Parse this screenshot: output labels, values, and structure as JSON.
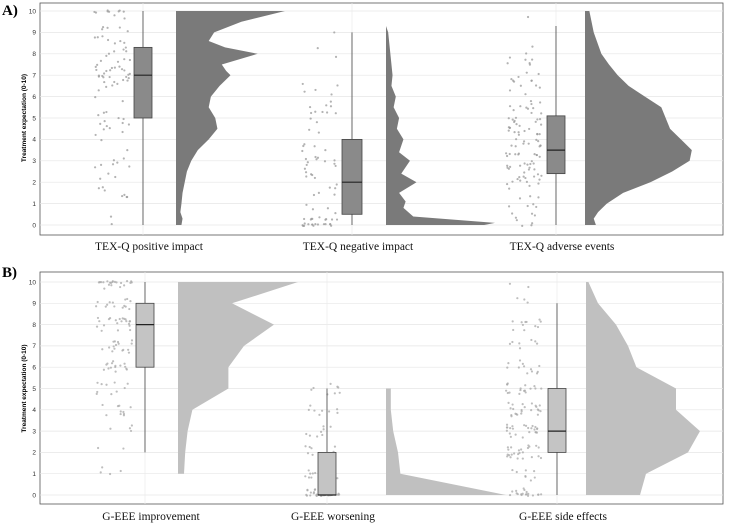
{
  "chart_data": [
    {
      "panel": "A)",
      "type": "raincloud",
      "ylabel": "Treatment expectation (0-10)",
      "ylim": [
        0,
        10
      ],
      "yticks": [
        0,
        1,
        2,
        3,
        4,
        5,
        6,
        7,
        8,
        9,
        10
      ],
      "grid": true,
      "fill": "#7a7a7a",
      "point_color": "#9a9a9a",
      "categories": [
        "TEX-Q positive impact",
        "TEX-Q negative impact",
        "TEX-Q adverse events"
      ],
      "boxplots": [
        {
          "min": 0,
          "q1": 5.0,
          "median": 7.0,
          "q3": 8.3,
          "max": 10
        },
        {
          "min": 0,
          "q1": 0.5,
          "median": 2.0,
          "q3": 4.0,
          "max": 9
        },
        {
          "min": 0,
          "q1": 2.4,
          "median": 3.5,
          "q3": 5.1,
          "max": 9.3
        }
      ],
      "densities": [
        [
          [
            0,
            0.05
          ],
          [
            0.3,
            0.06
          ],
          [
            0.6,
            0.04
          ],
          [
            1,
            0.05
          ],
          [
            1.5,
            0.06
          ],
          [
            2,
            0.08
          ],
          [
            2.5,
            0.1
          ],
          [
            3,
            0.14
          ],
          [
            3.5,
            0.2
          ],
          [
            4,
            0.3
          ],
          [
            4.5,
            0.38
          ],
          [
            5,
            0.36
          ],
          [
            5.5,
            0.3
          ],
          [
            6,
            0.32
          ],
          [
            6.5,
            0.4
          ],
          [
            7,
            0.5
          ],
          [
            7.2,
            0.46
          ],
          [
            7.5,
            0.42
          ],
          [
            8,
            0.75
          ],
          [
            8.3,
            0.45
          ],
          [
            8.6,
            0.3
          ],
          [
            9,
            0.35
          ],
          [
            9.5,
            0.6
          ],
          [
            10,
            1.0
          ]
        ],
        [
          [
            0,
            0.9
          ],
          [
            0.1,
            1.0
          ],
          [
            0.4,
            0.25
          ],
          [
            0.8,
            0.16
          ],
          [
            1.1,
            0.18
          ],
          [
            1.5,
            0.12
          ],
          [
            2,
            0.28
          ],
          [
            2.4,
            0.14
          ],
          [
            3,
            0.22
          ],
          [
            3.4,
            0.12
          ],
          [
            4,
            0.16
          ],
          [
            4.5,
            0.1
          ],
          [
            5,
            0.12
          ],
          [
            5.5,
            0.07
          ],
          [
            6,
            0.09
          ],
          [
            6.5,
            0.05
          ],
          [
            7,
            0.06
          ],
          [
            8,
            0.04
          ],
          [
            9,
            0.02
          ],
          [
            9.3,
            0.0
          ]
        ],
        [
          [
            0,
            0.1
          ],
          [
            0.3,
            0.08
          ],
          [
            0.6,
            0.12
          ],
          [
            1,
            0.2
          ],
          [
            1.5,
            0.35
          ],
          [
            2,
            0.6
          ],
          [
            2.5,
            0.8
          ],
          [
            3,
            0.96
          ],
          [
            3.5,
            0.98
          ],
          [
            4,
            0.88
          ],
          [
            4.5,
            0.78
          ],
          [
            5,
            0.74
          ],
          [
            5.5,
            0.7
          ],
          [
            6,
            0.55
          ],
          [
            6.5,
            0.4
          ],
          [
            7,
            0.3
          ],
          [
            7.5,
            0.22
          ],
          [
            8,
            0.15
          ],
          [
            9,
            0.08
          ],
          [
            10,
            0.04
          ]
        ]
      ]
    },
    {
      "panel": "B)",
      "type": "raincloud",
      "ylabel": "Treatment expectation (0-10)",
      "ylim": [
        0,
        10
      ],
      "yticks": [
        0,
        1,
        2,
        3,
        4,
        5,
        6,
        7,
        8,
        9,
        10
      ],
      "grid": true,
      "fill": "#c0c0c0",
      "point_color": "#a8a8a8",
      "categories": [
        "G-EEE improvement",
        "G-EEE worsening",
        "G-EEE side effects"
      ],
      "boxplots": [
        {
          "min": 2,
          "q1": 6.0,
          "median": 8.0,
          "q3": 9.0,
          "max": 10
        },
        {
          "min": 0,
          "q1": 0.0,
          "median": 0.0,
          "q3": 2.0,
          "max": 5
        },
        {
          "min": 0,
          "q1": 2.0,
          "median": 3.0,
          "q3": 5.0,
          "max": 9
        }
      ],
      "densities": [
        [
          [
            1,
            0.05
          ],
          [
            2,
            0.06
          ],
          [
            3,
            0.08
          ],
          [
            4,
            0.12
          ],
          [
            5,
            0.42
          ],
          [
            6,
            0.42
          ],
          [
            7,
            0.55
          ],
          [
            8,
            0.8
          ],
          [
            9,
            0.45
          ],
          [
            10,
            1.0
          ]
        ],
        [
          [
            0,
            1.0
          ],
          [
            1,
            0.12
          ],
          [
            2,
            0.1
          ],
          [
            3,
            0.06
          ],
          [
            4,
            0.04
          ],
          [
            5,
            0.04
          ]
        ],
        [
          [
            0,
            0.45
          ],
          [
            1,
            0.5
          ],
          [
            2,
            0.85
          ],
          [
            3,
            0.95
          ],
          [
            4,
            0.75
          ],
          [
            5,
            0.75
          ],
          [
            6,
            0.42
          ],
          [
            7,
            0.35
          ],
          [
            8,
            0.25
          ],
          [
            9,
            0.1
          ],
          [
            10,
            0.02
          ]
        ]
      ]
    }
  ]
}
